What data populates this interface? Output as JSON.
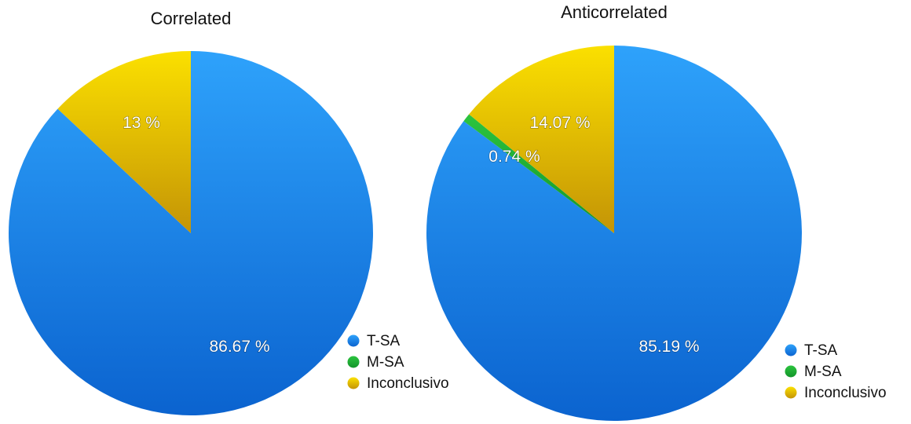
{
  "chart_data": [
    {
      "type": "pie",
      "title": "Correlated",
      "categories": [
        "T-SA",
        "M-SA",
        "Inconclusivo"
      ],
      "values": [
        86.67,
        0,
        13
      ],
      "labels": [
        "86.67 %",
        "",
        "13 %"
      ],
      "colors": [
        "#1e86e8",
        "#22b33a",
        "#e3c000"
      ],
      "legend": {
        "position": "bottom-right",
        "entries": [
          "T-SA",
          "M-SA",
          "Inconclusivo"
        ]
      }
    },
    {
      "type": "pie",
      "title": "Anticorrelated",
      "categories": [
        "T-SA",
        "M-SA",
        "Inconclusivo"
      ],
      "values": [
        85.19,
        0.74,
        14.07
      ],
      "labels": [
        "85.19 %",
        "0.74 %",
        "14.07 %"
      ],
      "colors": [
        "#1e86e8",
        "#22b33a",
        "#e3c000"
      ],
      "legend": {
        "position": "bottom-right",
        "entries": [
          "T-SA",
          "M-SA",
          "Inconclusivo"
        ]
      }
    }
  ]
}
